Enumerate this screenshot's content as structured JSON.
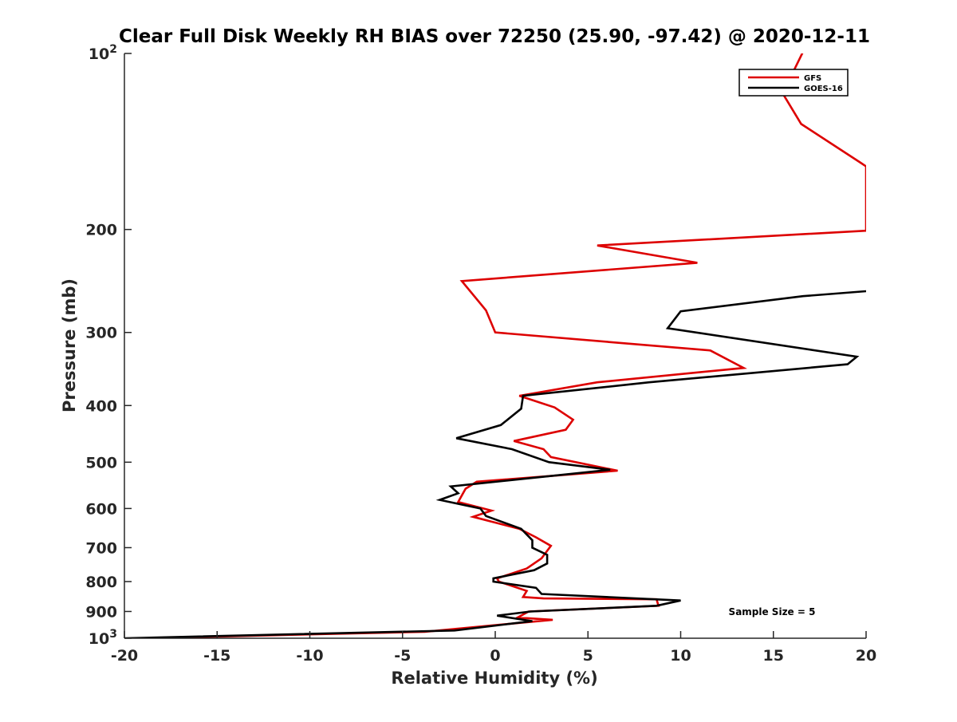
{
  "chart_data": {
    "type": "line",
    "title": "Clear Full Disk Weekly RH BIAS over 72250 (25.90, -97.42) @ 2020-12-11",
    "xlabel": "Relative Humidity (%)",
    "ylabel": "Pressure (mb)",
    "xlim": [
      -20,
      20
    ],
    "ylim": [
      100,
      1000
    ],
    "y_scale": "log",
    "y_reversed": true,
    "grid": false,
    "legend_position": "top-right",
    "x_ticks": [
      "-20",
      "-15",
      "-10",
      "-5",
      "0",
      "5",
      "10",
      "15",
      "20"
    ],
    "y_ticks": [
      {
        "value": 100,
        "base": "10",
        "exp": "2"
      },
      {
        "value": 200,
        "label": "200"
      },
      {
        "value": 300,
        "label": "300"
      },
      {
        "value": 400,
        "label": "400"
      },
      {
        "value": 500,
        "label": "500"
      },
      {
        "value": 600,
        "label": "600"
      },
      {
        "value": 700,
        "label": "700"
      },
      {
        "value": 800,
        "label": "800"
      },
      {
        "value": 900,
        "label": "900"
      },
      {
        "value": 1000,
        "base": "10",
        "exp": "3"
      }
    ],
    "annotation": "Sample Size = 5",
    "series": [
      {
        "name": "GFS",
        "color": "#dd0000",
        "points": [
          [
            16.9,
            95
          ],
          [
            15.5,
            117
          ],
          [
            16.5,
            132
          ],
          [
            19.6,
            153
          ],
          [
            20,
            156
          ],
          [
            20,
            201
          ],
          [
            5.5,
            213
          ],
          [
            10.9,
            228
          ],
          [
            -1.8,
            245
          ],
          [
            -0.5,
            275
          ],
          [
            0,
            300
          ],
          [
            11.6,
            322
          ],
          [
            13.4,
            345
          ],
          [
            5.5,
            365
          ],
          [
            1.3,
            385
          ],
          [
            3.2,
            403
          ],
          [
            4.2,
            423
          ],
          [
            3.8,
            440
          ],
          [
            1.0,
            460
          ],
          [
            2.6,
            475
          ],
          [
            3.0,
            490
          ],
          [
            6.6,
            517
          ],
          [
            -1.0,
            540
          ],
          [
            -1.6,
            555
          ],
          [
            -2.0,
            585
          ],
          [
            -0.2,
            605
          ],
          [
            -1.2,
            620
          ],
          [
            1.3,
            650
          ],
          [
            2.2,
            672
          ],
          [
            3.0,
            695
          ],
          [
            2.5,
            730
          ],
          [
            1.7,
            760
          ],
          [
            0.1,
            790
          ],
          [
            0.2,
            800
          ],
          [
            1.7,
            830
          ],
          [
            1.5,
            850
          ],
          [
            2.6,
            855
          ],
          [
            8.7,
            858
          ],
          [
            8.8,
            880
          ],
          [
            1.8,
            900
          ],
          [
            1.2,
            922
          ],
          [
            3.1,
            930
          ],
          [
            -3.8,
            975
          ],
          [
            -19.0,
            1000
          ]
        ]
      },
      {
        "name": "GOES-16",
        "color": "#000000",
        "points": [
          [
            20,
            255
          ],
          [
            16.6,
            260
          ],
          [
            10.0,
            276
          ],
          [
            9.3,
            295
          ],
          [
            19.5,
            330
          ],
          [
            19.0,
            340
          ],
          [
            8.3,
            365
          ],
          [
            1.5,
            385
          ],
          [
            1.4,
            405
          ],
          [
            0.3,
            432
          ],
          [
            -2.1,
            455
          ],
          [
            0.9,
            475
          ],
          [
            2.9,
            500
          ],
          [
            6.2,
            515
          ],
          [
            -2.4,
            550
          ],
          [
            -2.0,
            565
          ],
          [
            -3.0,
            580
          ],
          [
            -0.8,
            600
          ],
          [
            -0.5,
            618
          ],
          [
            1.4,
            650
          ],
          [
            2.0,
            680
          ],
          [
            2.0,
            700
          ],
          [
            2.8,
            720
          ],
          [
            2.8,
            745
          ],
          [
            2.1,
            765
          ],
          [
            -0.1,
            790
          ],
          [
            -0.1,
            800
          ],
          [
            2.2,
            820
          ],
          [
            2.5,
            840
          ],
          [
            10.0,
            862
          ],
          [
            8.7,
            880
          ],
          [
            1.9,
            900
          ],
          [
            0.1,
            915
          ],
          [
            2.0,
            935
          ],
          [
            -2.2,
            970
          ],
          [
            -20.0,
            1000
          ]
        ]
      }
    ]
  }
}
